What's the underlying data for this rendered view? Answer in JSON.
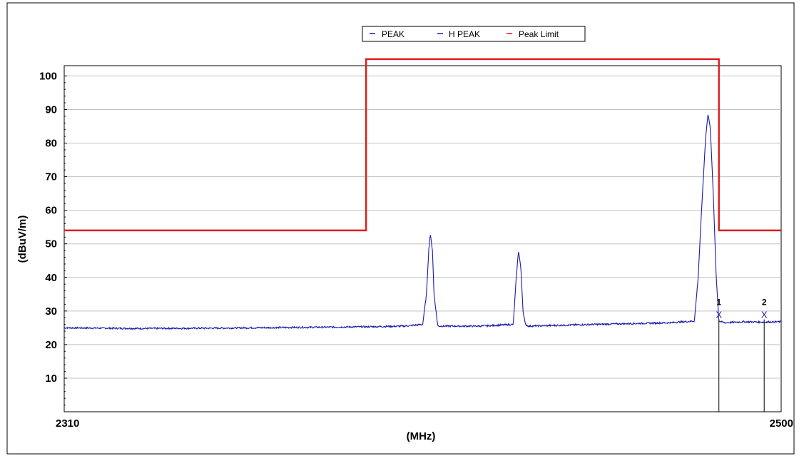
{
  "chart_data": {
    "type": "line",
    "title": "",
    "xlabel": "(MHz)",
    "ylabel": "(dBuV/m)",
    "xlim": [
      2310,
      2500
    ],
    "ylim": [
      0,
      102
    ],
    "xticks": [
      "2310",
      "2500"
    ],
    "yticks": [
      10,
      20,
      30,
      40,
      50,
      60,
      70,
      80,
      90,
      100
    ],
    "grid": true,
    "legend_position": "top-center",
    "legend": [
      {
        "label": "PEAK",
        "color": "#1a1aa8"
      },
      {
        "label": "H PEAK",
        "color": "#1a1aa8"
      },
      {
        "label": "Peak Limit",
        "color": "#e01b1b"
      }
    ],
    "series": [
      {
        "name": "PEAK",
        "color": "#1a1aa8",
        "noise": 0.25,
        "x": [
          2310,
          2330,
          2350,
          2370,
          2390,
          2400,
          2405,
          2406,
          2406.6,
          2407,
          2407.6,
          2408,
          2409,
          2420,
          2429,
          2429.8,
          2430.4,
          2431,
          2431.6,
          2432.2,
          2433,
          2450,
          2470,
          2477,
          2478,
          2479,
          2480,
          2480.6,
          2481.2,
          2482,
          2482.8,
          2483.5,
          2485,
          2490,
          2495,
          2500
        ],
        "y": [
          25.0,
          24.8,
          24.9,
          25.1,
          25.3,
          25.5,
          26.0,
          35.0,
          48.0,
          53.0,
          48.0,
          35.0,
          25.5,
          25.5,
          26.0,
          40.0,
          48.0,
          43.0,
          30.0,
          26.0,
          25.5,
          26.0,
          26.5,
          27.0,
          40.0,
          62.0,
          82.0,
          88.5,
          85.0,
          65.0,
          40.0,
          27.0,
          26.5,
          26.8,
          26.7,
          26.8
        ]
      },
      {
        "name": "Peak Limit",
        "color": "#e01b1b",
        "x": [
          2310,
          2390,
          2390,
          2483.5,
          2483.5,
          2500
        ],
        "y": [
          54,
          54,
          105,
          105,
          54,
          54
        ]
      }
    ],
    "markers": [
      {
        "label": "1",
        "x": 2483.5,
        "y": 27.5
      },
      {
        "label": "2",
        "x": 2495.5,
        "y": 27.5
      }
    ]
  }
}
